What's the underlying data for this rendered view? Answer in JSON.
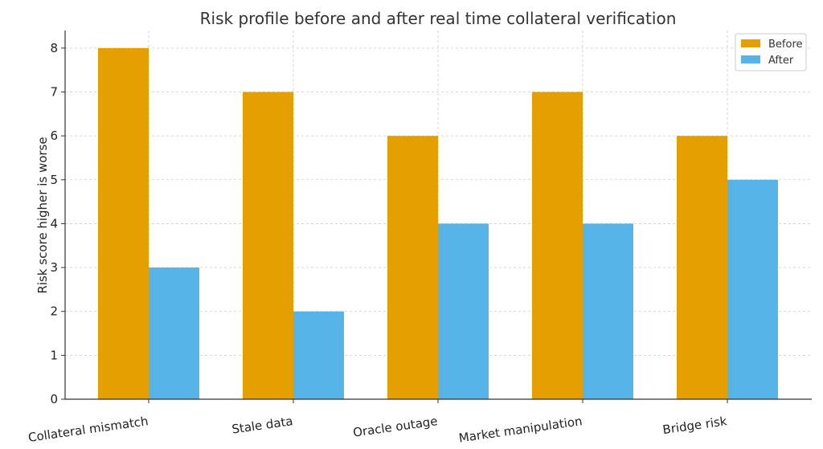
{
  "chart_data": {
    "type": "bar",
    "title": "Risk profile  before and after real time collateral verification",
    "ylabel": "Risk score  higher is worse",
    "xlabel": "",
    "categories": [
      "Collateral mismatch",
      "Stale data",
      "Oracle outage",
      "Market manipulation",
      "Bridge risk"
    ],
    "series": [
      {
        "name": "Before",
        "values": [
          8,
          7,
          6,
          7,
          6
        ],
        "color": "#E69F00"
      },
      {
        "name": "After",
        "values": [
          3,
          2,
          4,
          4,
          5
        ],
        "color": "#56B4E9"
      }
    ],
    "ylim": [
      0,
      8.4
    ],
    "yticks": [
      0,
      1,
      2,
      3,
      4,
      5,
      6,
      7,
      8
    ],
    "grid": true,
    "legend_position": "top-right"
  }
}
